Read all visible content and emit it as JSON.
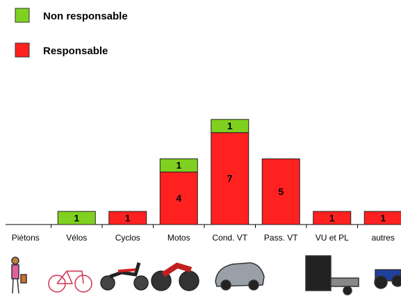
{
  "chart_data": {
    "type": "stacked_bar",
    "categories": [
      "Piétons",
      "Vélos",
      "Cyclos",
      "Motos",
      "Cond. VT",
      "Pass. VT",
      "VU et PL",
      "autres"
    ],
    "series": [
      {
        "name": "Responsable",
        "color": "#ff2020",
        "values": [
          null,
          null,
          1,
          4,
          7,
          5,
          1,
          1
        ]
      },
      {
        "name": "Non responsable",
        "color": "#80d020",
        "values": [
          null,
          1,
          null,
          1,
          1,
          null,
          null,
          null
        ]
      }
    ],
    "legend": "top-left"
  }
}
